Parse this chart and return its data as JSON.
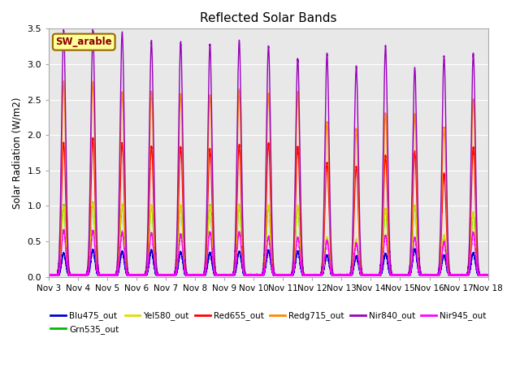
{
  "title": "Reflected Solar Bands",
  "ylabel": "Solar Radiation (W/m2)",
  "xlabel": "",
  "ylim": [
    0,
    3.5
  ],
  "background_color": "#ffffff",
  "plot_bg_color": "#e8e8e8",
  "annotation_text": "SW_arable",
  "annotation_color": "#8B0000",
  "annotation_bg": "#ffff99",
  "grid_color": "#ffffff",
  "series": [
    {
      "name": "Blu475_out",
      "color": "#0000cc",
      "lw": 1.0
    },
    {
      "name": "Grn535_out",
      "color": "#00bb00",
      "lw": 1.0
    },
    {
      "name": "Yel580_out",
      "color": "#dddd00",
      "lw": 1.0
    },
    {
      "name": "Red655_out",
      "color": "#ff0000",
      "lw": 1.0
    },
    {
      "name": "Redg715_out",
      "color": "#ff8800",
      "lw": 1.0
    },
    {
      "name": "Nir840_out",
      "color": "#9900bb",
      "lw": 1.0
    },
    {
      "name": "Nir945_out",
      "color": "#ff00ff",
      "lw": 1.0
    }
  ],
  "xtick_labels": [
    "Nov 3",
    "Nov 4",
    "Nov 5",
    "Nov 6",
    "Nov 7",
    "Nov 8",
    "Nov 9",
    "Nov 10",
    "Nov 11",
    "Nov 12",
    "Nov 13",
    "Nov 14",
    "Nov 15",
    "Nov 16",
    "Nov 17",
    "Nov 18"
  ],
  "peak_heights": {
    "Blu475_out": [
      0.33,
      0.37,
      0.35,
      0.36,
      0.34,
      0.33,
      0.35,
      0.36,
      0.35,
      0.3,
      0.28,
      0.32,
      0.38,
      0.3,
      0.33
    ],
    "Grn535_out": [
      1.0,
      1.04,
      1.01,
      1.0,
      1.0,
      1.0,
      1.0,
      1.0,
      0.99,
      0.53,
      0.5,
      0.95,
      1.0,
      0.55,
      0.9
    ],
    "Yel580_out": [
      1.0,
      1.04,
      1.01,
      1.0,
      1.0,
      1.0,
      1.0,
      1.0,
      0.99,
      0.55,
      0.52,
      0.96,
      1.0,
      0.57,
      0.9
    ],
    "Red655_out": [
      1.88,
      1.95,
      1.88,
      1.83,
      1.83,
      1.8,
      1.85,
      1.88,
      1.83,
      1.6,
      1.55,
      1.7,
      1.75,
      1.45,
      1.82
    ],
    "Redg715_out": [
      2.75,
      2.75,
      2.6,
      2.6,
      2.58,
      2.56,
      2.62,
      2.58,
      2.6,
      2.18,
      2.08,
      2.3,
      2.28,
      2.1,
      2.5
    ],
    "Nir840_out": [
      3.48,
      3.47,
      3.45,
      3.32,
      3.31,
      3.27,
      3.33,
      3.25,
      3.07,
      3.14,
      2.95,
      3.25,
      2.94,
      3.1,
      3.14
    ],
    "Nir945_out": [
      0.65,
      0.64,
      0.62,
      0.61,
      0.59,
      0.62,
      0.63,
      0.55,
      0.54,
      0.5,
      0.46,
      0.58,
      0.55,
      0.48,
      0.62
    ]
  },
  "base_val": 0.02,
  "n_days": 15,
  "ppd": 500
}
